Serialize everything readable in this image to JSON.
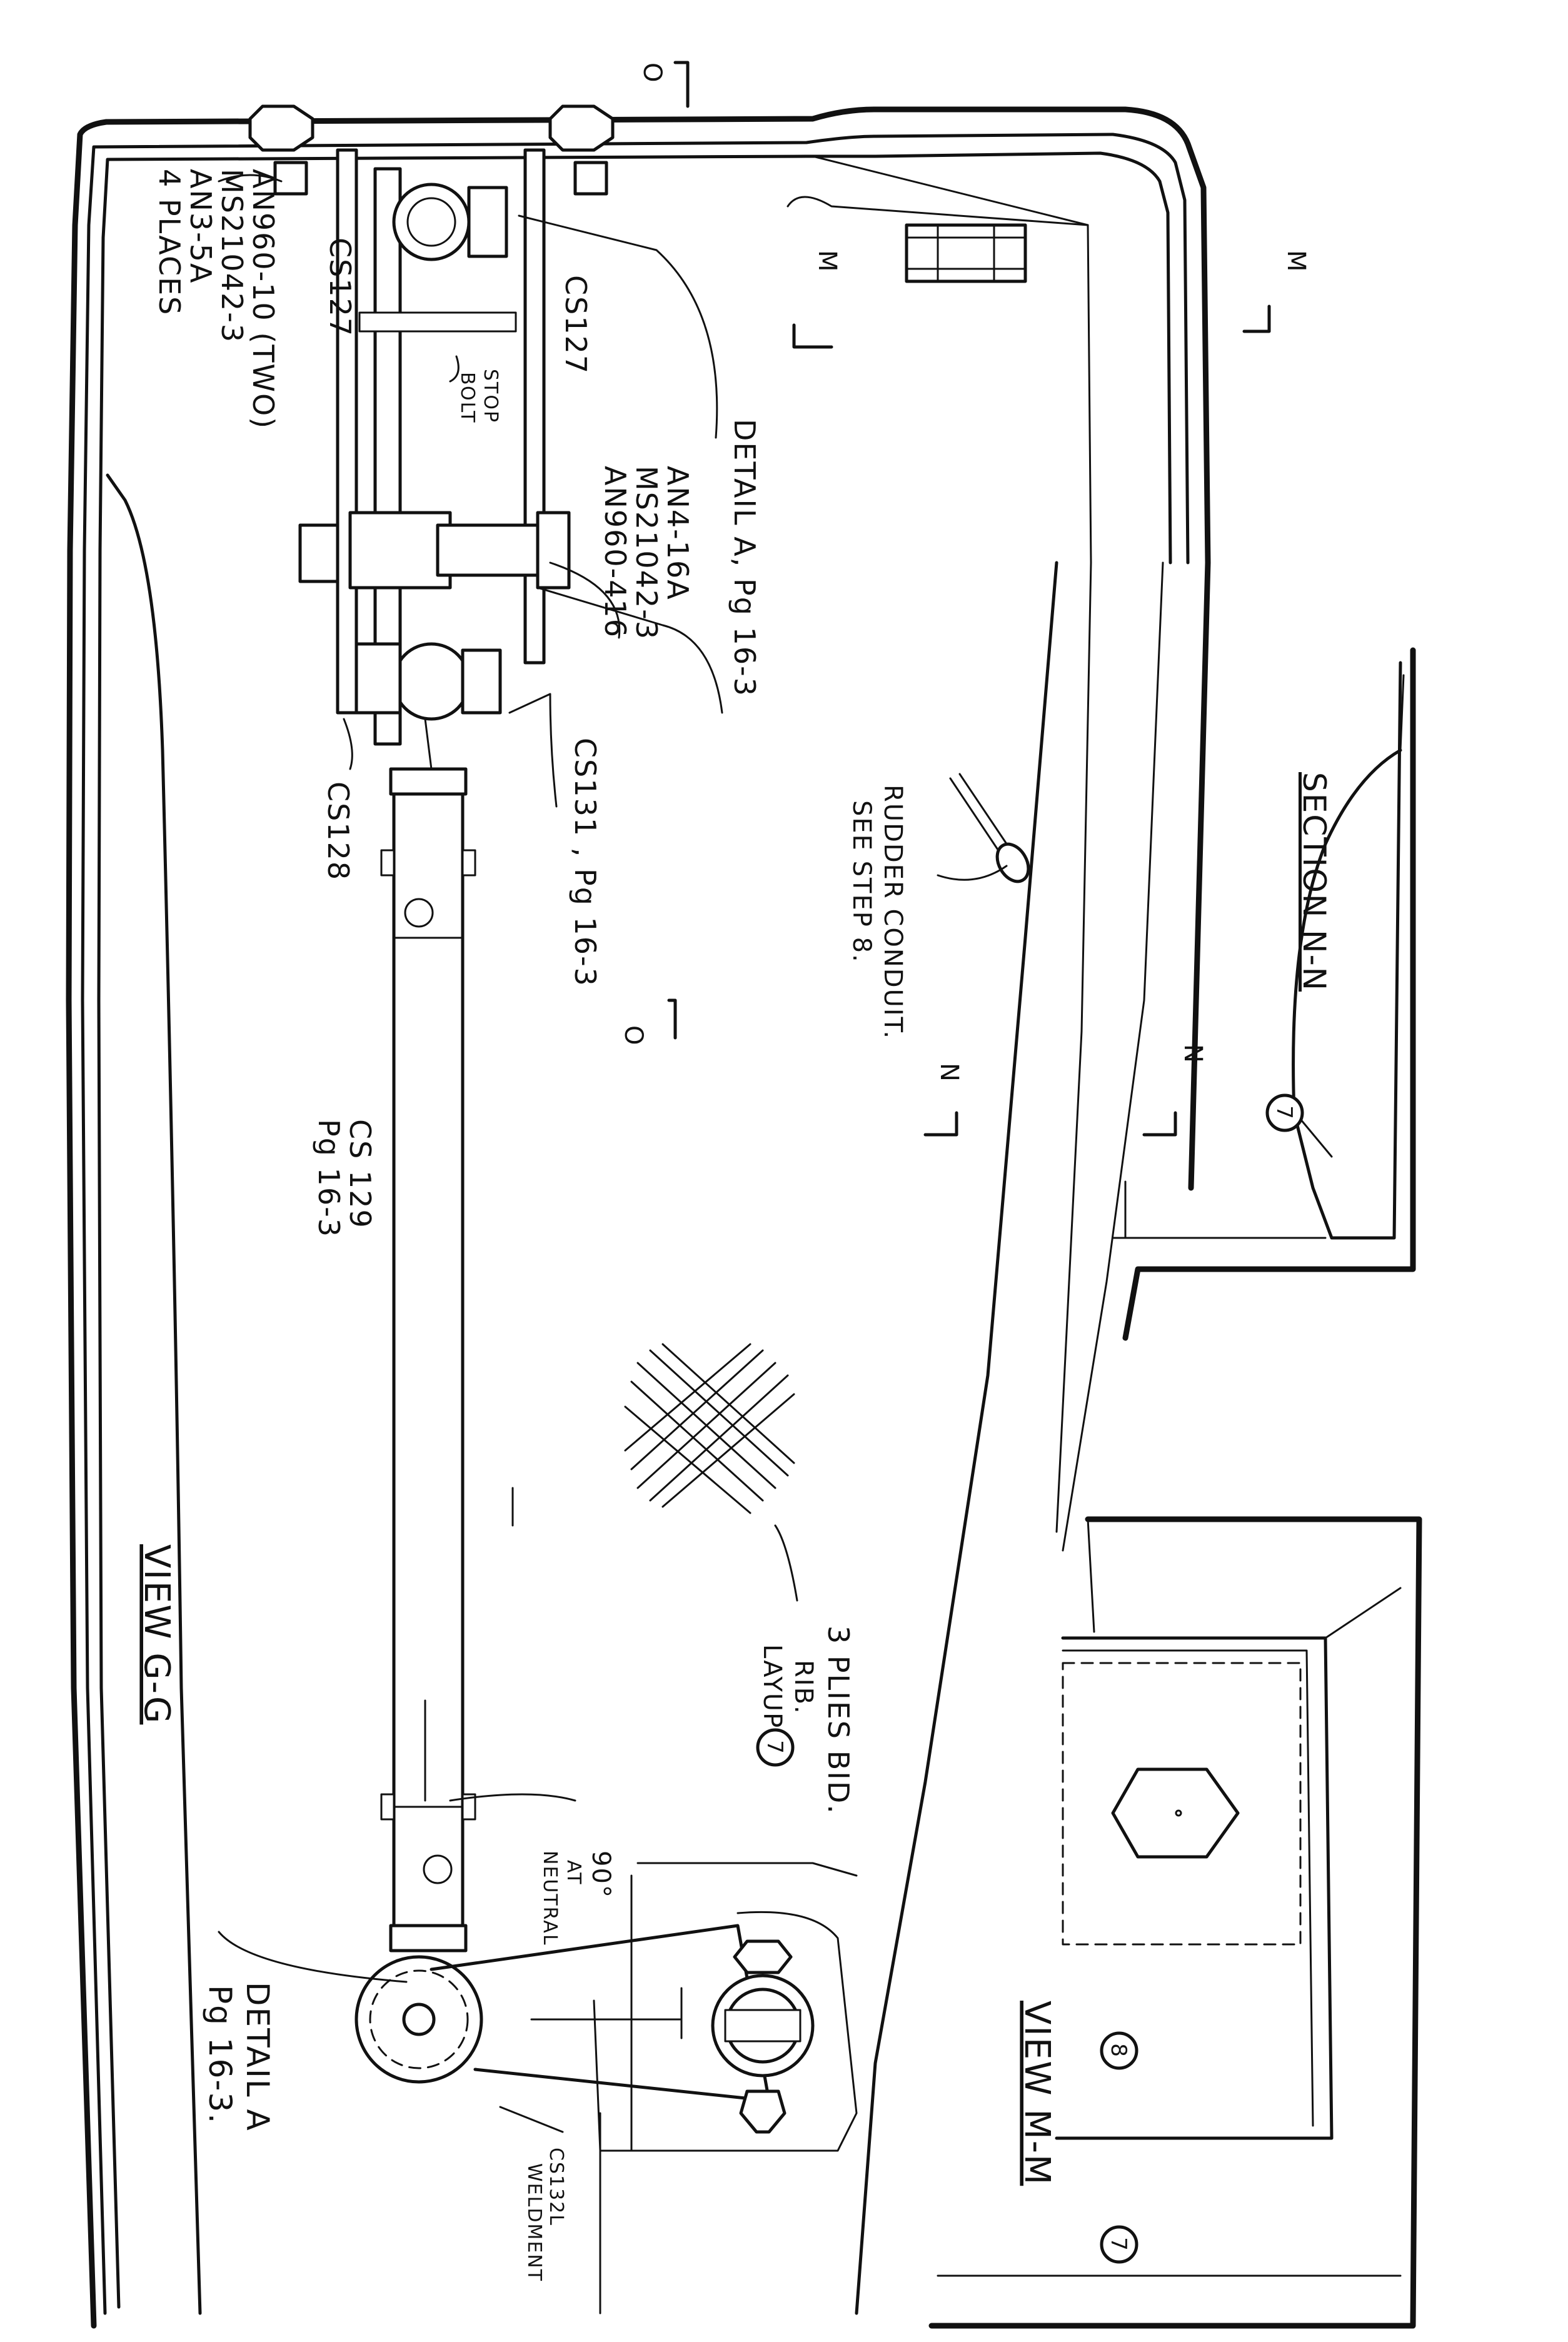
{
  "labels": {
    "view_gg": "VIEW G-G",
    "view_mm": "VIEW M-M",
    "section_nn": "SECTION N-N",
    "hardware_1": "AN960-10 (TWO)",
    "hardware_2": "MS21042-3",
    "hardware_3": "AN3-5A",
    "hardware_4": "4 PLACES",
    "cs127_left": "CS127",
    "cs127_right": "CS127",
    "stop_bolt_1": "STOP",
    "stop_bolt_2": "BOLT",
    "detail_a_top": "DETAIL A, Pg 16-3",
    "an4_1": "AN4-16A",
    "an4_2": "MS21042-3",
    "an4_3": "AN960-416",
    "cs131": "CS131 , Pg 16-3",
    "cs128": "CS128",
    "rudder_1": "RUDDER CONDUIT.",
    "rudder_2": "SEE STEP 8.",
    "cs129_1": "CS 129",
    "cs129_2": "Pg 16-3",
    "plies_1": "3 PLIES BID.",
    "plies_2": "RIB.",
    "plies_3": "LAYUP",
    "callout_7a": "7",
    "callout_7b": "7",
    "callout_7c": "7",
    "callout_8": "8",
    "ninety_1": "90°",
    "ninety_2": "AT",
    "ninety_3": "NEUTRAL",
    "detail_a_bottom_1": "DETAIL A",
    "detail_a_bottom_2": "Pg 16-3.",
    "cs132_1": "CS132L",
    "cs132_2": "WELDMENT",
    "cut_o_top": "O",
    "cut_o_mid": "O",
    "cut_m_left": "M",
    "cut_m_right": "M",
    "cut_n_left": "N",
    "cut_n_right": "N"
  }
}
